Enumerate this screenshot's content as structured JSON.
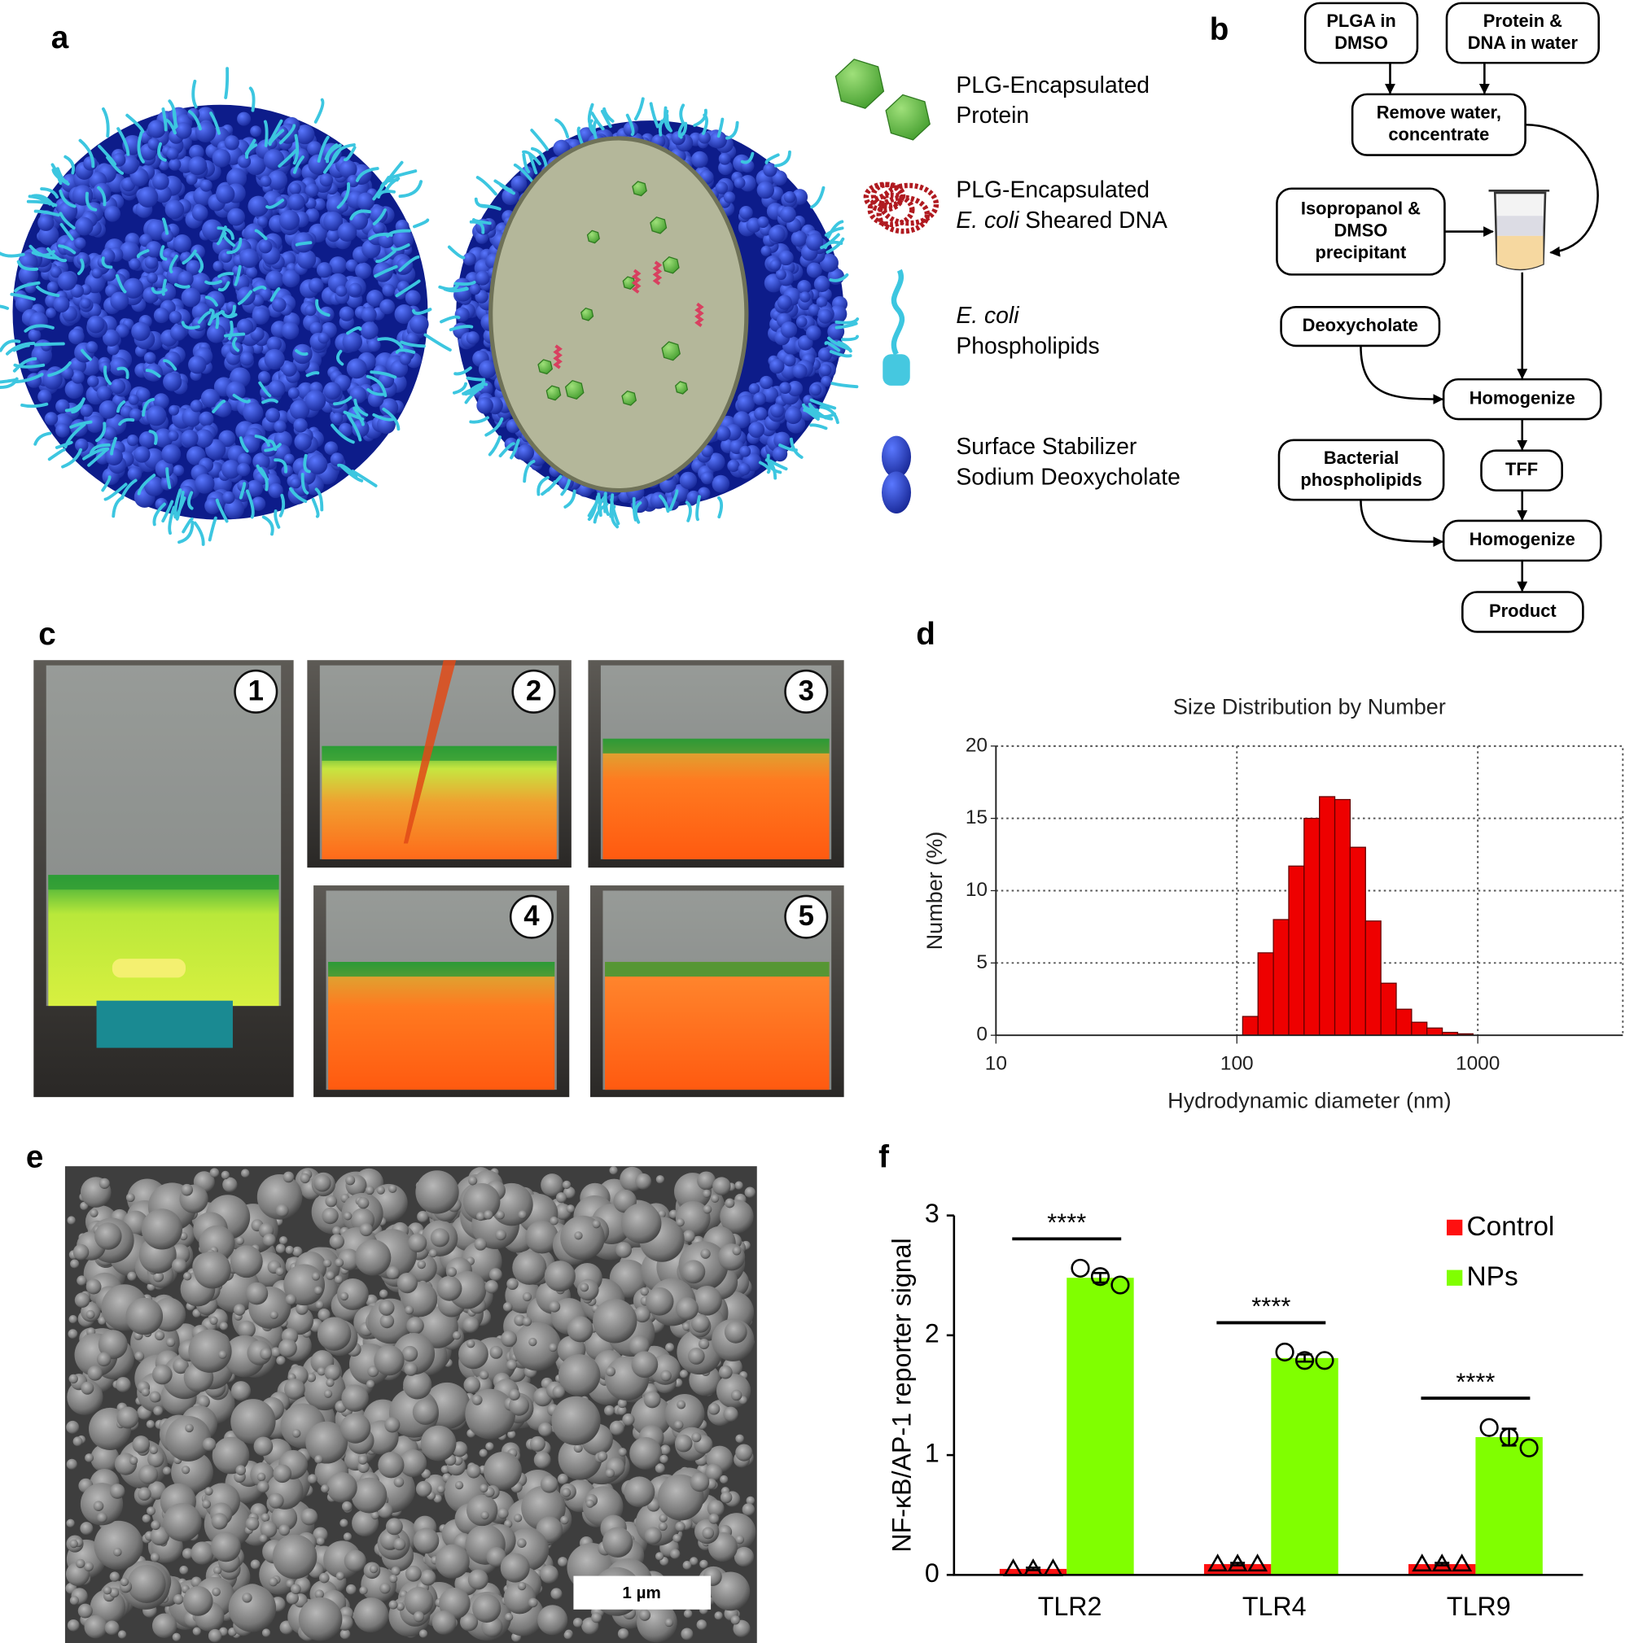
{
  "panel_labels": [
    "a",
    "b",
    "c",
    "d",
    "e",
    "f"
  ],
  "panel_a": {
    "legend": [
      {
        "lines": [
          {
            "text": "PLG-Encapsulated"
          },
          {
            "text": "Protein"
          }
        ]
      },
      {
        "lines": [
          {
            "text": "PLG-Encapsulated"
          },
          {
            "italic": "E. coli",
            "text": "Sheared DNA"
          }
        ]
      },
      {
        "lines": [
          {
            "italic": "E. coli"
          },
          {
            "text": "Phospholipids"
          }
        ]
      },
      {
        "lines": [
          {
            "text": "Surface Stabilizer"
          },
          {
            "text": "Sodium Deoxycholate"
          }
        ]
      }
    ]
  },
  "panel_b": {
    "nodes": [
      {
        "lines": [
          "PLGA in",
          "DMSO"
        ]
      },
      {
        "lines": [
          "Protein &",
          "DNA in water"
        ]
      },
      {
        "lines": [
          "Remove water,",
          "concentrate"
        ]
      },
      {
        "lines": [
          "Isopropanol &",
          "DMSO",
          "precipitant"
        ]
      },
      {
        "lines": [
          "Deoxycholate"
        ]
      },
      {
        "lines": [
          "Homogenize"
        ]
      },
      {
        "lines": [
          "TFF"
        ]
      },
      {
        "lines": [
          "Bacterial",
          "phospholipids"
        ]
      },
      {
        "lines": [
          "Homogenize"
        ]
      },
      {
        "lines": [
          "Product"
        ]
      }
    ]
  },
  "panel_c": {
    "photo_numbers": [
      "1",
      "2",
      "3",
      "4",
      "5"
    ]
  },
  "panel_e": {
    "scale_bar": "1 µm"
  },
  "chart_data": [
    {
      "type": "histogram",
      "title": "Size Distribution by Number",
      "x_label": "Hydrodynamic diameter (nm)",
      "y_label": "Number (%)",
      "bins": [
        105.7,
        122.4,
        141.8,
        164.2,
        190.1,
        220.2,
        255.0,
        295.3,
        342.0,
        396.1,
        458.7,
        531.2,
        615.1,
        712.4,
        825.0,
        955.4
      ],
      "values": [
        1.3,
        5.7,
        8.0,
        11.7,
        15.0,
        16.5,
        16.3,
        13.0,
        7.9,
        3.6,
        1.8,
        0.9,
        0.5,
        0.2,
        0.1
      ],
      "color": "#ee0000",
      "xlim": [
        10,
        4000
      ],
      "xticks": [
        10,
        100,
        1000
      ],
      "x_log": true,
      "ylim": [
        0,
        20
      ],
      "yticks": [
        0,
        5,
        10,
        15,
        20
      ],
      "grid": true
    },
    {
      "type": "bar",
      "y_label": "NF-κB/AP-1 reporter signal",
      "categories": [
        "TLR2",
        "TLR4",
        "TLR9"
      ],
      "series": [
        {
          "name": "Control",
          "color": "#ff1010",
          "marker": "triangle",
          "values": [
            0.05,
            0.09,
            0.09
          ],
          "errors": [
            0.01,
            0.01,
            0.01
          ],
          "points": [
            [
              0.05,
              0.05,
              0.05
            ],
            [
              0.09,
              0.09,
              0.09
            ],
            [
              0.09,
              0.09,
              0.09
            ]
          ]
        },
        {
          "name": "NPs",
          "color": "#80ff00",
          "marker": "circle",
          "values": [
            2.48,
            1.81,
            1.15
          ],
          "errors": [
            0.04,
            0.03,
            0.07
          ],
          "points": [
            [
              2.56,
              2.49,
              2.42
            ],
            [
              1.86,
              1.79,
              1.79
            ],
            [
              1.23,
              1.15,
              1.06
            ]
          ]
        }
      ],
      "annotations": [
        "****",
        "****",
        "****"
      ],
      "ylim": [
        0,
        3
      ],
      "yticks": [
        0,
        1,
        2,
        3
      ],
      "legend": "top-right"
    }
  ]
}
